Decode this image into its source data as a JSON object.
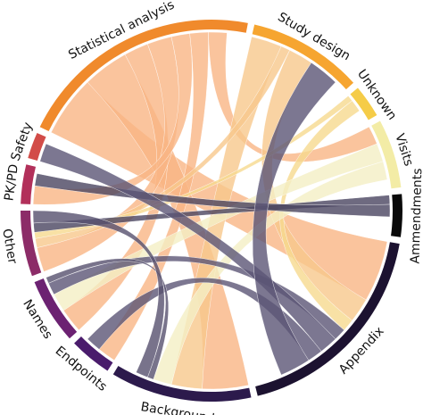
{
  "chart_data": {
    "type": "chord",
    "segments": [
      {
        "name": "Statistical analysis",
        "value": 75,
        "color": "#f08a2c"
      },
      {
        "name": "Study design",
        "value": 35,
        "color": "#f6a530"
      },
      {
        "name": "Unknown",
        "value": 10,
        "color": "#f5cc48"
      },
      {
        "name": "Visits",
        "value": 21,
        "color": "#f3eca6"
      },
      {
        "name": "Ammendments",
        "value": 13,
        "color": "#0a0a0a"
      },
      {
        "name": "Appendix",
        "value": 66,
        "color": "#1c1230"
      },
      {
        "name": "Background",
        "value": 43,
        "color": "#2c1a4c"
      },
      {
        "name": "Endpoints",
        "value": 13,
        "color": "#4a1c6c"
      },
      {
        "name": "Names",
        "value": 20,
        "color": "#6c2272"
      },
      {
        "name": "Other",
        "value": 20,
        "color": "#8c2c68"
      },
      {
        "name": "PK/PD",
        "value": 12,
        "color": "#b2305a"
      },
      {
        "name": "Safety",
        "value": 8,
        "color": "#d24c48"
      }
    ],
    "chords": [
      {
        "source": 0,
        "target": 5,
        "value": 20,
        "color": "#f9b584"
      },
      {
        "source": 0,
        "target": 6,
        "value": 15,
        "color": "#f9b584"
      },
      {
        "source": 0,
        "target": 8,
        "value": 8,
        "color": "#f9b584"
      },
      {
        "source": 0,
        "target": 9,
        "value": 8,
        "color": "#f9b584"
      },
      {
        "source": 0,
        "target": 10,
        "value": 6,
        "color": "#f9b584"
      },
      {
        "source": 0,
        "target": 7,
        "value": 6,
        "color": "#f9b584"
      },
      {
        "source": 0,
        "target": 3,
        "value": 6,
        "color": "#f9b584"
      },
      {
        "source": 1,
        "target": 6,
        "value": 10,
        "color": "#f8c88c"
      },
      {
        "source": 1,
        "target": 9,
        "value": 3,
        "color": "#f8c88c"
      },
      {
        "source": 1,
        "target": 5,
        "value": 8,
        "color": "#f8c88c"
      },
      {
        "source": 2,
        "target": 9,
        "value": 2,
        "color": "#f6d98e"
      },
      {
        "source": 2,
        "target": 5,
        "value": 4,
        "color": "#f6d98e"
      },
      {
        "source": 3,
        "target": 8,
        "value": 6,
        "color": "#f4efc4"
      },
      {
        "source": 3,
        "target": 6,
        "value": 6,
        "color": "#f4efc4"
      },
      {
        "source": 4,
        "target": 9,
        "value": 3,
        "color": "#4a4560"
      },
      {
        "source": 4,
        "target": 10,
        "value": 4,
        "color": "#4a4560"
      },
      {
        "source": 5,
        "target": 8,
        "value": 4,
        "color": "#5b5575"
      },
      {
        "source": 5,
        "target": 11,
        "value": 6,
        "color": "#5b5575"
      },
      {
        "source": 5,
        "target": 7,
        "value": 5,
        "color": "#5b5575"
      },
      {
        "source": 5,
        "target": 1,
        "value": 10,
        "color": "#5b5575"
      },
      {
        "source": 6,
        "target": 8,
        "value": 2,
        "color": "#56506e"
      },
      {
        "source": 6,
        "target": 9,
        "value": 4,
        "color": "#56506e"
      }
    ]
  }
}
